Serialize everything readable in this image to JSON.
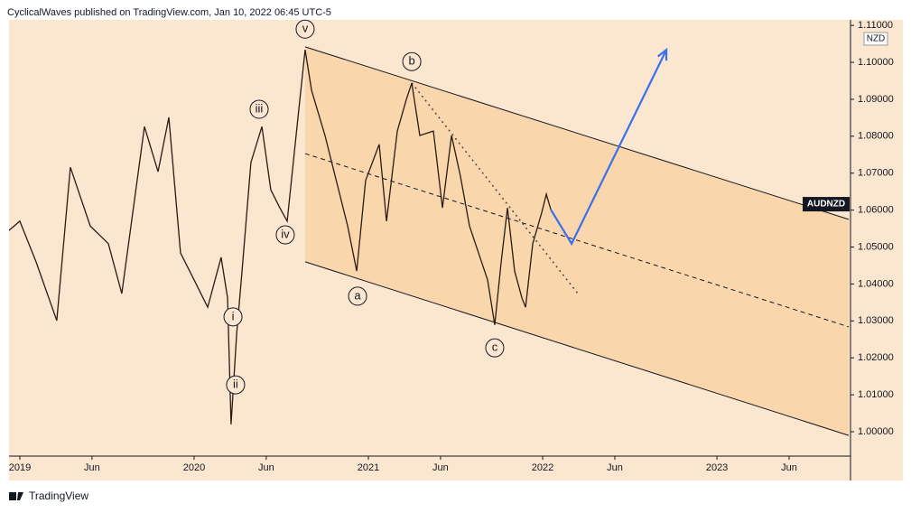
{
  "header": "CyclicalWaves published on TradingView.com, Jan 10, 2022 06:45 UTC-5",
  "footer": "TradingView",
  "chart_data": {
    "type": "line",
    "y_unit": "NZD",
    "background": "#fbe6cf",
    "x": [
      2018.938,
      2019.0,
      2019.093,
      2019.212,
      2019.29,
      2019.404,
      2019.508,
      2019.585,
      2019.715,
      2019.793,
      2019.855,
      2019.922,
      2020.0,
      2020.078,
      2020.155,
      2020.192,
      2020.212,
      2020.244,
      2020.275,
      2020.326,
      2020.389,
      2020.44,
      2020.492,
      2020.534,
      2020.596,
      2020.637,
      2020.674,
      2020.751,
      2020.829,
      2020.881,
      2020.933,
      2020.984,
      2021.062,
      2021.104,
      2021.166,
      2021.218,
      2021.249,
      2021.295,
      2021.373,
      2021.425,
      2021.477,
      2021.528,
      2021.58,
      2021.632,
      2021.684,
      2021.725,
      2021.762,
      2021.798,
      2021.839,
      2021.881,
      2021.902,
      2021.943,
      2021.995,
      2022.021,
      2022.047
    ],
    "series": [
      {
        "name": "AUDNZD",
        "color": "#2a1a14",
        "values": [
          1.0545,
          1.057,
          1.046,
          1.0301,
          1.0716,
          1.0557,
          1.0509,
          1.0374,
          1.0826,
          1.0704,
          1.0851,
          1.0484,
          1.0411,
          1.0337,
          1.0472,
          1.0362,
          1.002,
          1.0264,
          1.0435,
          1.0729,
          1.0826,
          1.0655,
          1.0606,
          1.057,
          1.0851,
          1.1034,
          1.0924,
          1.0802,
          1.0655,
          1.0557,
          1.0435,
          1.068,
          1.0778,
          1.057,
          1.0814,
          1.09,
          1.0944,
          1.0802,
          1.0814,
          1.0606,
          1.0802,
          1.0692,
          1.0557,
          1.0484,
          1.0411,
          1.0289,
          1.046,
          1.0606,
          1.0435,
          1.0362,
          1.0337,
          1.0509,
          1.0594,
          1.0643,
          1.0601
        ]
      }
    ],
    "xlim": [
      2018.938,
      2023.756
    ],
    "ylim": [
      0.9934,
      1.1115
    ],
    "xticks": [
      2019,
      {
        "value": 2019.414,
        "label": "Jun"
      },
      2020,
      {
        "value": 2020.414,
        "label": "Jun"
      },
      2021,
      {
        "value": 2021.414,
        "label": "Jun"
      },
      2022,
      {
        "value": 2022.414,
        "label": "Jun"
      },
      2023,
      {
        "value": 2023.414,
        "label": "Jun"
      }
    ],
    "yticks": [
      {
        "value": 1.0,
        "label": "1.00000"
      },
      {
        "value": 1.01,
        "label": "1.01000"
      },
      {
        "value": 1.02,
        "label": "1.02000"
      },
      {
        "value": 1.03,
        "label": "1.03000"
      },
      {
        "value": 1.04,
        "label": "1.04000"
      },
      {
        "value": 1.05,
        "label": "1.05000"
      },
      {
        "value": 1.06,
        "label": "1.06000"
      },
      {
        "value": 1.07,
        "label": "1.07000"
      },
      {
        "value": 1.08,
        "label": "1.08000"
      },
      {
        "value": 1.09,
        "label": "1.09000"
      },
      {
        "value": 1.1,
        "label": "1.10000"
      },
      {
        "value": 1.11,
        "label": "1.11000"
      }
    ],
    "channel": {
      "x": [
        2020.637,
        2023.756
      ],
      "upper": [
        1.1042,
        1.0575
      ],
      "middle": [
        1.0753,
        1.0284
      ],
      "lower": [
        1.046,
        0.999
      ],
      "fill": "#f9d6ab",
      "color": "#131722"
    },
    "trendline": {
      "x": [
        2021.249,
        2022.202
      ],
      "y": [
        1.0944,
        1.0374
      ],
      "color": "#4a4a4a"
    },
    "projection": {
      "x": [
        2022.047,
        2022.166,
        2022.71
      ],
      "y": [
        1.0601,
        1.0509,
        1.1034
      ],
      "color": "#3a6ff0"
    },
    "annotations": [
      {
        "text": "v",
        "x": 2020.637,
        "y": 1.109
      },
      {
        "text": "iii",
        "x": 2020.373,
        "y": 1.0873
      },
      {
        "text": "iv",
        "x": 2020.523,
        "y": 1.0533
      },
      {
        "text": "i",
        "x": 2020.223,
        "y": 1.0311
      },
      {
        "text": "ii",
        "x": 2020.238,
        "y": 1.0127
      },
      {
        "text": "a",
        "x": 2020.938,
        "y": 1.0367
      },
      {
        "text": "b",
        "x": 2021.249,
        "y": 1.1002
      },
      {
        "text": "c",
        "x": 2021.725,
        "y": 1.0227
      }
    ],
    "price_tag": {
      "text": "AUDNZD",
      "value": 1.0616
    }
  }
}
